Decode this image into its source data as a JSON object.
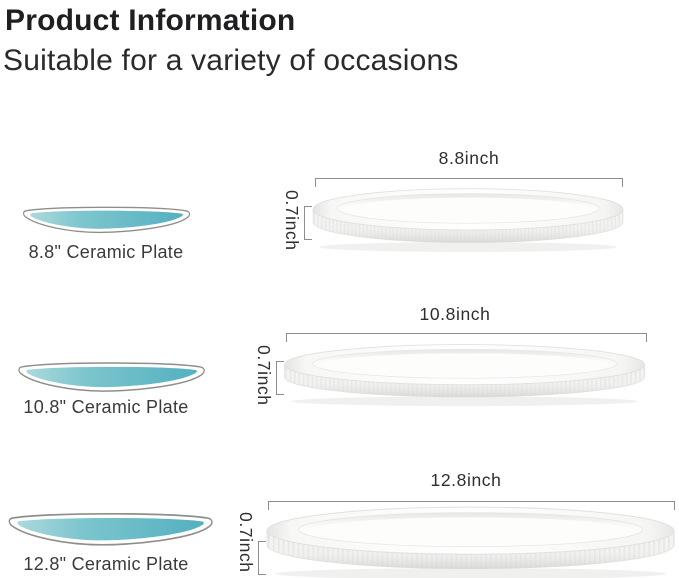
{
  "header": {
    "title": "Product Information",
    "subtitle": "Suitable for a variety of occasions"
  },
  "colors": {
    "teal_gradient_light": "#abd9dd",
    "teal_gradient_mid": "#7cc5cd",
    "teal_gradient_dark": "#54b0c0",
    "illustration_outline": "#8e8e8a",
    "dimension_line": "#8d8d8d",
    "heading_text": "#1f1f21",
    "label_text": "#3a3a3a",
    "dimension_text": "#2e2e2e"
  },
  "plates": [
    {
      "name": "8.8\" Ceramic Plate",
      "diameter": "8.8inch",
      "height": "0.7inch"
    },
    {
      "name": "10.8\" Ceramic Plate",
      "diameter": "10.8inch",
      "height": "0.7inch"
    },
    {
      "name": "12.8\" Ceramic Plate",
      "diameter": "12.8inch",
      "height": "0.7inch"
    }
  ]
}
